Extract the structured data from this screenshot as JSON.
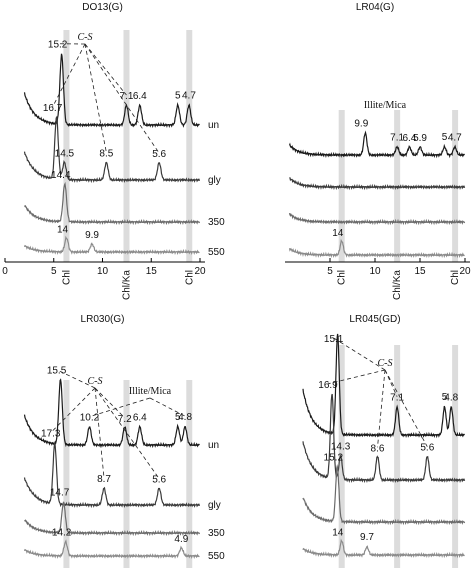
{
  "panels": [
    {
      "title": "DO13(G)",
      "xticks": [
        0,
        5,
        10,
        15,
        20
      ],
      "band_labels": [
        "Chl",
        "Chl/Ka",
        "Chl"
      ],
      "annotations": [
        "C-S"
      ],
      "traces": [
        {
          "name": "un",
          "peaks": [
            "15.2",
            "7.1",
            "6.4",
            "5",
            "4.7"
          ]
        },
        {
          "name": "gly",
          "peaks": [
            "16.7",
            "14.5",
            "8.5",
            "5.6"
          ]
        },
        {
          "name": "350",
          "peaks": [
            "14.4"
          ]
        },
        {
          "name": "550",
          "peaks": [
            "14",
            "9.9"
          ]
        }
      ]
    },
    {
      "title": "LR04(G)",
      "xticks": [
        5,
        10,
        15,
        20
      ],
      "band_labels": [
        "Chl",
        "Chl/Ka",
        "Chl"
      ],
      "annotations": [
        "Illite/Mica"
      ],
      "traces": [
        {
          "peaks": [
            "9.9",
            "7.1",
            "6.4",
            "5.9",
            "5",
            "4.7"
          ]
        },
        {
          "peaks": []
        },
        {
          "peaks": []
        },
        {
          "peaks": [
            "14"
          ]
        }
      ]
    },
    {
      "title": "LR030(G)",
      "annotations": [
        "C-S",
        "Illite/Mica"
      ],
      "traces": [
        {
          "name": "un",
          "peaks": [
            "15.5",
            "10.2",
            "7.2",
            "6.4",
            "5",
            "4.8"
          ]
        },
        {
          "name": "gly",
          "peaks": [
            "17.3",
            "8.7",
            "5.6"
          ]
        },
        {
          "name": "350",
          "peaks": [
            "14.7"
          ]
        },
        {
          "name": "550",
          "peaks": [
            "14.2",
            "4.9"
          ]
        }
      ]
    },
    {
      "title": "LR045(GD)",
      "annotations": [
        "C-S"
      ],
      "traces": [
        {
          "peaks": [
            "15.1",
            "7.1",
            "5",
            "4.8"
          ]
        },
        {
          "peaks": [
            "16.9",
            "14.3",
            "8.6",
            "5.6"
          ]
        },
        {
          "peaks": [
            "15.2"
          ]
        },
        {
          "peaks": [
            "14",
            "9.7"
          ]
        }
      ]
    }
  ]
}
